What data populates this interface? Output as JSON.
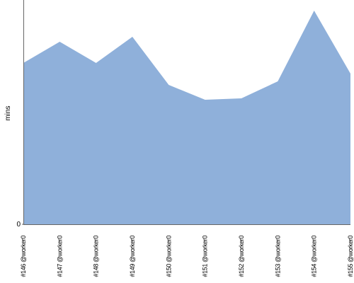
{
  "chart_data": {
    "type": "area",
    "y_label": "mins",
    "categories": [
      "#146 @worker0",
      "#147 @worker0",
      "#148 @worker0",
      "#149 @worker0",
      "#150 @worker0",
      "#151 @worker0",
      "#152 @worker0",
      "#153 @worker0",
      "#154 @worker0",
      "#155 @worker0"
    ],
    "values": [
      22.8,
      25.8,
      22.8,
      26.5,
      19.7,
      17.6,
      17.8,
      20.2,
      30.2,
      21.3
    ],
    "color": "#8fb0da",
    "ylim": [
      0,
      31.7
    ],
    "yticks": [
      0
    ]
  }
}
